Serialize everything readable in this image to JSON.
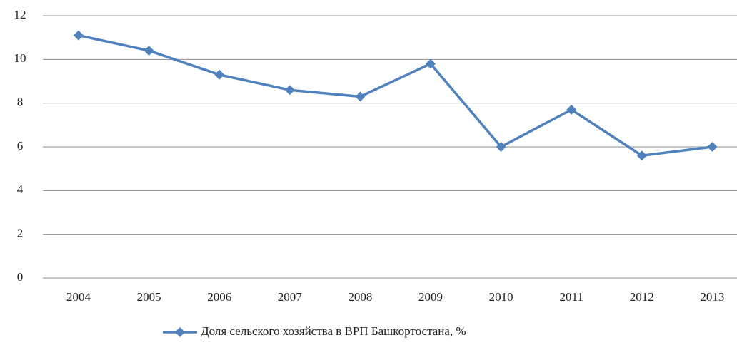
{
  "chart_data": {
    "type": "line",
    "categories": [
      "2004",
      "2005",
      "2006",
      "2007",
      "2008",
      "2009",
      "2010",
      "2011",
      "2012",
      "2013"
    ],
    "series": [
      {
        "name": "Доля сельского хозяйства в ВРП Башкортостана, %",
        "color": "#4f81bd",
        "values": [
          11.1,
          10.4,
          9.3,
          8.6,
          8.3,
          9.8,
          6.0,
          7.7,
          5.6,
          6.0
        ]
      }
    ],
    "ylim": [
      0,
      12
    ],
    "yticks": [
      0,
      2,
      4,
      6,
      8,
      10,
      12
    ],
    "grid": true,
    "legend": "bottom"
  }
}
